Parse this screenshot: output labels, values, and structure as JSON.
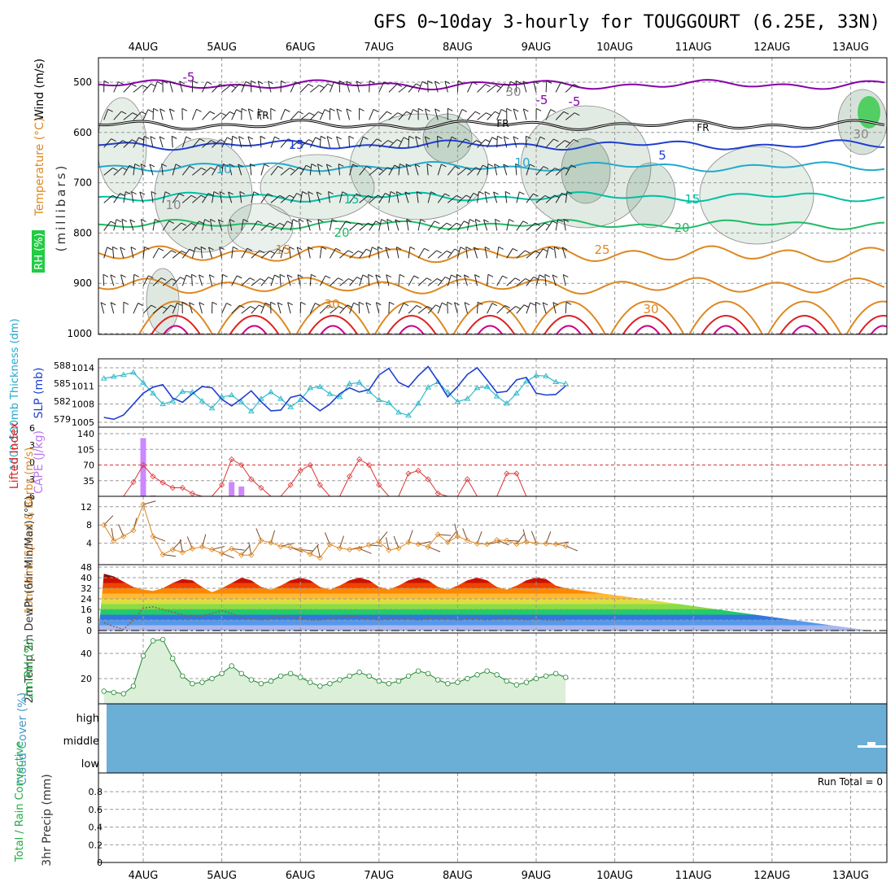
{
  "title": "GFS 0~10day 3-hourly for TOUGGOURT (6.25E, 33N)",
  "colors": {
    "purple": "#8800aa",
    "blue": "#1f3fd0",
    "cyan": "#22aacc",
    "teal": "#00bfa5",
    "green": "#22bb66",
    "orange": "#dd8822",
    "red": "#dd2222",
    "magenta": "#cc0088",
    "cloud": "#6baed6",
    "cyanline": "#33bbcc"
  },
  "chart_data": {
    "type": "multi-panel meteogram",
    "x_tick_labels": [
      "4AUG",
      "5AUG",
      "6AUG",
      "7AUG",
      "8AUG",
      "9AUG",
      "10AUG",
      "11AUG",
      "12AUG",
      "13AUG"
    ],
    "upper_air": {
      "axis_label": "(millibars)",
      "labels": {
        "rh": "RH (%)",
        "temperature": "Temperature (°C)",
        "wind": "Wind (m/s)"
      },
      "y_ticks": [
        500,
        600,
        700,
        800,
        900,
        1000
      ],
      "freezing_label": "FR",
      "isotherm_labels": [
        "-5",
        "-5",
        "-5",
        "15",
        "10",
        "10",
        "5",
        "15",
        "15",
        "20",
        "20",
        "15",
        "25",
        "30",
        "30",
        "30",
        "10",
        "30"
      ],
      "isotherms_mb": [
        {
          "temp": -5,
          "level_mb": 505
        },
        {
          "temp": 0,
          "level_mb": 585
        },
        {
          "temp": 5,
          "level_mb": 625
        },
        {
          "temp": 10,
          "level_mb": 668
        },
        {
          "temp": 15,
          "level_mb": 728
        },
        {
          "temp": 20,
          "level_mb": 783
        },
        {
          "temp": 25,
          "level_mb": 842
        },
        {
          "temp": 30,
          "level_mb": 905
        }
      ]
    },
    "slp_panel": {
      "label_left": "1000-500mb Thickness (dm)",
      "label_right": "SLP (mb)",
      "thickness_ticks": [
        579,
        582,
        585,
        588
      ],
      "slp_ticks": [
        1005,
        1008,
        1011,
        1014
      ],
      "thickness_dm": [
        585.8,
        586.1,
        586.4,
        586.8,
        585.1,
        583.3,
        581.5,
        582.0,
        583.6,
        583.5,
        582.0,
        580.8,
        582.7,
        583.0,
        581.8,
        580.3,
        582.4,
        583.5,
        582.4,
        581.0,
        582.2,
        584.2,
        584.4,
        583.2,
        582.7,
        584.9,
        585.1,
        583.6,
        582.2,
        581.7,
        580.1,
        579.6,
        581.6,
        584.3,
        585.2,
        583.5,
        581.9,
        582.4,
        584.2,
        584.4,
        582.8,
        581.6,
        583.3,
        585.3,
        586.3,
        586.2,
        585.2,
        584.9
      ],
      "slp_mb": [
        1005.8,
        1005.5,
        1006.2,
        1008.0,
        1009.8,
        1010.8,
        1011.2,
        1009.0,
        1008.3,
        1009.7,
        1010.9,
        1010.7,
        1008.8,
        1007.7,
        1008.9,
        1010.2,
        1008.4,
        1006.9,
        1007.0,
        1009.1,
        1009.5,
        1008.1,
        1006.9,
        1008.0,
        1009.7,
        1010.7,
        1010.0,
        1010.4,
        1012.8,
        1013.9,
        1011.6,
        1010.8,
        1012.7,
        1014.2,
        1011.8,
        1009.2,
        1010.9,
        1012.9,
        1014.0,
        1012.0,
        1009.9,
        1010.1,
        1012.0,
        1012.4,
        1009.8,
        1009.5,
        1009.6,
        1011.0
      ]
    },
    "cape_panel": {
      "label_left": "Lifted Index",
      "label_right": "CAPE (J/kg)",
      "li_ticks": [
        -6,
        -3,
        0,
        3,
        6
      ],
      "li_tick_labels": [
        "6",
        "3",
        "0",
        "-3",
        "-6"
      ],
      "cape_ticks": [
        35,
        70,
        105,
        140
      ],
      "lifted_index": [
        6,
        6,
        6,
        3.5,
        0.5,
        2.5,
        3.6,
        4.5,
        4.5,
        5.5,
        6,
        6,
        4,
        -0.5,
        0.5,
        3,
        4.5,
        6,
        6,
        4,
        1.5,
        0.5,
        4,
        6,
        6,
        2.5,
        -0.5,
        0.5,
        4,
        6,
        6,
        2,
        1.5,
        3,
        5.5,
        6,
        6,
        3,
        6,
        6,
        6,
        2,
        2,
        6,
        6,
        6,
        6,
        6
      ],
      "cape": [
        0,
        0,
        0,
        0,
        130,
        2,
        0,
        0,
        0,
        0,
        0,
        0,
        0,
        32,
        22,
        0,
        0,
        0,
        0,
        0,
        0,
        0,
        0,
        0,
        0,
        0,
        0,
        0,
        0,
        0,
        0,
        0,
        0,
        0,
        0,
        0,
        0,
        0,
        0,
        0,
        0,
        0,
        0,
        0,
        0,
        0,
        0,
        0
      ]
    },
    "wind_panel": {
      "label": "10m Wind Speed & Barbs (m/s)",
      "y_ticks": [
        4,
        8,
        12
      ],
      "speed_ms": [
        8,
        4.5,
        5.5,
        6.8,
        12.5,
        5.5,
        1.5,
        2.6,
        2,
        2.8,
        3.2,
        2.6,
        1.8,
        2.8,
        1.4,
        1.4,
        4.6,
        4.1,
        3.3,
        3.1,
        2.6,
        1.6,
        0.8,
        3.7,
        2.9,
        2.6,
        2.8,
        3.6,
        4.3,
        2.5,
        2.9,
        4.2,
        3.8,
        3.2,
        5.9,
        4.2,
        5.5,
        4.6,
        3.9,
        3.8,
        4.7,
        4.6,
        3.8,
        4.3,
        4.0,
        3.9,
        3.8,
        3.4
      ]
    },
    "temp_panel": {
      "label": "2m Temp 2m DewPt (6hr Min/Max) (°C)",
      "y_ticks": [
        0,
        8,
        16,
        24,
        32,
        40,
        48
      ],
      "temp_c": [
        43,
        41,
        37,
        33,
        31,
        30,
        32,
        36,
        39,
        38,
        33,
        29,
        32,
        36,
        40,
        38,
        33,
        31,
        34,
        38,
        40,
        38,
        33,
        31,
        34,
        38,
        40,
        38,
        33,
        31,
        34,
        38,
        40,
        38,
        33,
        31,
        34,
        38,
        40,
        38,
        33,
        31,
        34,
        38,
        40,
        39,
        34,
        32
      ],
      "dewpt_c": [
        6,
        3,
        1,
        8,
        17,
        18,
        16,
        14,
        12,
        10,
        11,
        13,
        15,
        13,
        10,
        9,
        8,
        9,
        11,
        10,
        9,
        8,
        8,
        9,
        10,
        11,
        10,
        9,
        8,
        9,
        10,
        9,
        8,
        9,
        10,
        9,
        8,
        9,
        9,
        8,
        9,
        10,
        9,
        8,
        9,
        8,
        8,
        8
      ]
    },
    "rh_panel": {
      "label": "2m RH (%)",
      "y_ticks": [
        20,
        40
      ],
      "rh_pct": [
        10,
        9,
        8,
        14,
        38,
        50,
        51,
        36,
        22,
        16,
        17,
        20,
        24,
        30,
        24,
        19,
        16,
        18,
        22,
        24,
        21,
        17,
        14,
        16,
        19,
        22,
        25,
        22,
        18,
        16,
        18,
        22,
        26,
        24,
        19,
        16,
        17,
        20,
        23,
        26,
        23,
        18,
        15,
        17,
        20,
        22,
        24,
        21
      ]
    },
    "cloud_panel": {
      "label": "Cloud Cover (%)",
      "levels": [
        "high",
        "middle",
        "low"
      ]
    },
    "precip_panel": {
      "label_left": "Total / Rain Convective",
      "label_right": "3hr Precip (mm)",
      "y_ticks": [
        0,
        0.2,
        0.4,
        0.6,
        0.8
      ],
      "run_total": "Run Total = 0"
    }
  }
}
